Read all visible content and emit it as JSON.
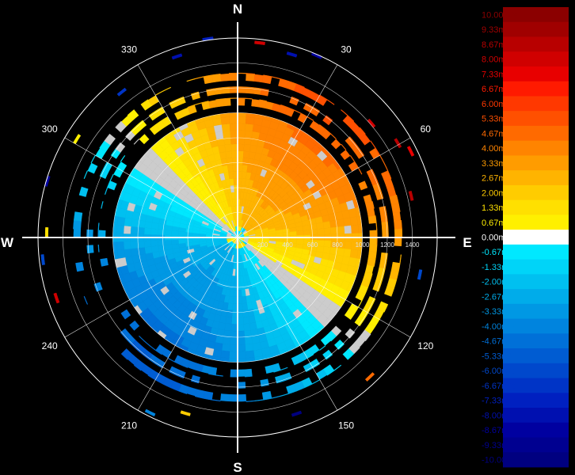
{
  "chart_data": {
    "type": "heatmap",
    "subtype": "polar-radial-velocity",
    "compass_labels": {
      "north": "N",
      "east": "E",
      "south": "S",
      "west": "W"
    },
    "bearing_labels": [
      {
        "deg": 30,
        "label": "30"
      },
      {
        "deg": 60,
        "label": "60"
      },
      {
        "deg": 120,
        "label": "120"
      },
      {
        "deg": 150,
        "label": "150"
      },
      {
        "deg": 210,
        "label": "210"
      },
      {
        "deg": 240,
        "label": "240"
      },
      {
        "deg": 300,
        "label": "300"
      },
      {
        "deg": 330,
        "label": "330"
      }
    ],
    "range_ring_labels": [
      "200",
      "400",
      "600",
      "800",
      "1000",
      "1200",
      "1400"
    ],
    "range_rings": [
      200,
      400,
      600,
      800,
      1000,
      1200,
      1400,
      1600
    ],
    "range_max": 1600,
    "grid": true,
    "legend": {
      "placement": "right",
      "unit": "m/s",
      "entries": [
        {
          "label": "10.00m/s",
          "value": 10.0,
          "color": "#8b0000"
        },
        {
          "label": "9.33m/s",
          "value": 9.33,
          "color": "#a00000"
        },
        {
          "label": "8.67m/s",
          "value": 8.67,
          "color": "#b80000"
        },
        {
          "label": "8.00m/s",
          "value": 8.0,
          "color": "#d00000"
        },
        {
          "label": "7.33m/s",
          "value": 7.33,
          "color": "#e80000"
        },
        {
          "label": "6.67m/s",
          "value": 6.67,
          "color": "#ff1a00"
        },
        {
          "label": "6.00m/s",
          "value": 6.0,
          "color": "#ff3800"
        },
        {
          "label": "5.33m/s",
          "value": 5.33,
          "color": "#ff5000"
        },
        {
          "label": "4.67m/s",
          "value": 4.67,
          "color": "#ff6a00"
        },
        {
          "label": "4.00m/s",
          "value": 4.0,
          "color": "#ff8400"
        },
        {
          "label": "3.33m/s",
          "value": 3.33,
          "color": "#ff9c00"
        },
        {
          "label": "2.67m/s",
          "value": 2.67,
          "color": "#ffb400"
        },
        {
          "label": "2.00m/s",
          "value": 2.0,
          "color": "#ffcc00"
        },
        {
          "label": "1.33m/s",
          "value": 1.33,
          "color": "#ffe000"
        },
        {
          "label": "0.67m/s",
          "value": 0.67,
          "color": "#fff000"
        },
        {
          "label": "0.00m/s",
          "value": 0.0,
          "color": "#ffffff"
        },
        {
          "label": "-0.67m/s",
          "value": -0.67,
          "color": "#00e8ff"
        },
        {
          "label": "-1.33m/s",
          "value": -1.33,
          "color": "#00d4f8"
        },
        {
          "label": "-2.00m/s",
          "value": -2.0,
          "color": "#00c0f0"
        },
        {
          "label": "-2.67m/s",
          "value": -2.67,
          "color": "#00acea"
        },
        {
          "label": "-3.33m/s",
          "value": -3.33,
          "color": "#0098e4"
        },
        {
          "label": "-4.00m/s",
          "value": -4.0,
          "color": "#0084de"
        },
        {
          "label": "-4.67m/s",
          "value": -4.67,
          "color": "#0070d8"
        },
        {
          "label": "-5.33m/s",
          "value": -5.33,
          "color": "#005cd2"
        },
        {
          "label": "-6.00m/s",
          "value": -6.0,
          "color": "#0048cc"
        },
        {
          "label": "-6.67m/s",
          "value": -6.67,
          "color": "#0034c6"
        },
        {
          "label": "-7.33m/s",
          "value": -7.33,
          "color": "#0020c0"
        },
        {
          "label": "-8.00m/s",
          "value": -8.0,
          "color": "#0010b0"
        },
        {
          "label": "-8.67m/s",
          "value": -8.67,
          "color": "#0000a0"
        },
        {
          "label": "-9.33m/s",
          "value": -9.33,
          "color": "#000090"
        },
        {
          "label": "-10.00m/s",
          "value": -10.0,
          "color": "#000080"
        }
      ]
    },
    "gate_rings": [
      {
        "from": 0,
        "to": 90,
        "step_deg": 12,
        "pattern": "core"
      },
      {
        "from": 90,
        "to": 1000,
        "step_deg": 4,
        "pattern": "main"
      },
      {
        "from": 1060,
        "to": 1120,
        "step_deg": 3,
        "pattern": "outer"
      },
      {
        "from": 1160,
        "to": 1210,
        "step_deg": 3,
        "pattern": "outer"
      },
      {
        "from": 1260,
        "to": 1320,
        "step_deg": 3,
        "pattern": "outer"
      }
    ],
    "sparse_gates": [
      {
        "az": 15,
        "range": 1520,
        "value": -8.0
      },
      {
        "az": 22,
        "range": 1580,
        "value": -8.67
      },
      {
        "az": 48,
        "range": 1400,
        "value": 8.0
      },
      {
        "az": 58,
        "range": 1480,
        "value": 8.67
      },
      {
        "az": 62,
        "range": 1540,
        "value": 7.33
      },
      {
        "az": 75,
        "range": 1420,
        "value": 8.67
      },
      {
        "az": 100,
        "range": 1480,
        "value": -6.0
      },
      {
        "az": 135,
        "range": 1530,
        "value": 4.67
      },
      {
        "az": 160,
        "range": 1480,
        "value": -10.0
      },
      {
        "az": 195,
        "range": 1460,
        "value": 2.0
      },
      {
        "az": 205,
        "range": 1560,
        "value": -4.0
      },
      {
        "az": 250,
        "range": 1520,
        "value": 8.0
      },
      {
        "az": 262,
        "range": 1560,
        "value": -6.0
      },
      {
        "az": 270,
        "range": 1520,
        "value": 1.33
      },
      {
        "az": 285,
        "range": 1580,
        "value": -8.67
      },
      {
        "az": 300,
        "range": 1500,
        "value": 0.67
      },
      {
        "az": 320,
        "range": 1480,
        "value": -6.67
      },
      {
        "az": 340,
        "range": 1520,
        "value": -8.0
      },
      {
        "az": 350,
        "range": 1600,
        "value": -7.33
      },
      {
        "az": 5,
        "range": 1560,
        "value": 8.0
      }
    ]
  }
}
